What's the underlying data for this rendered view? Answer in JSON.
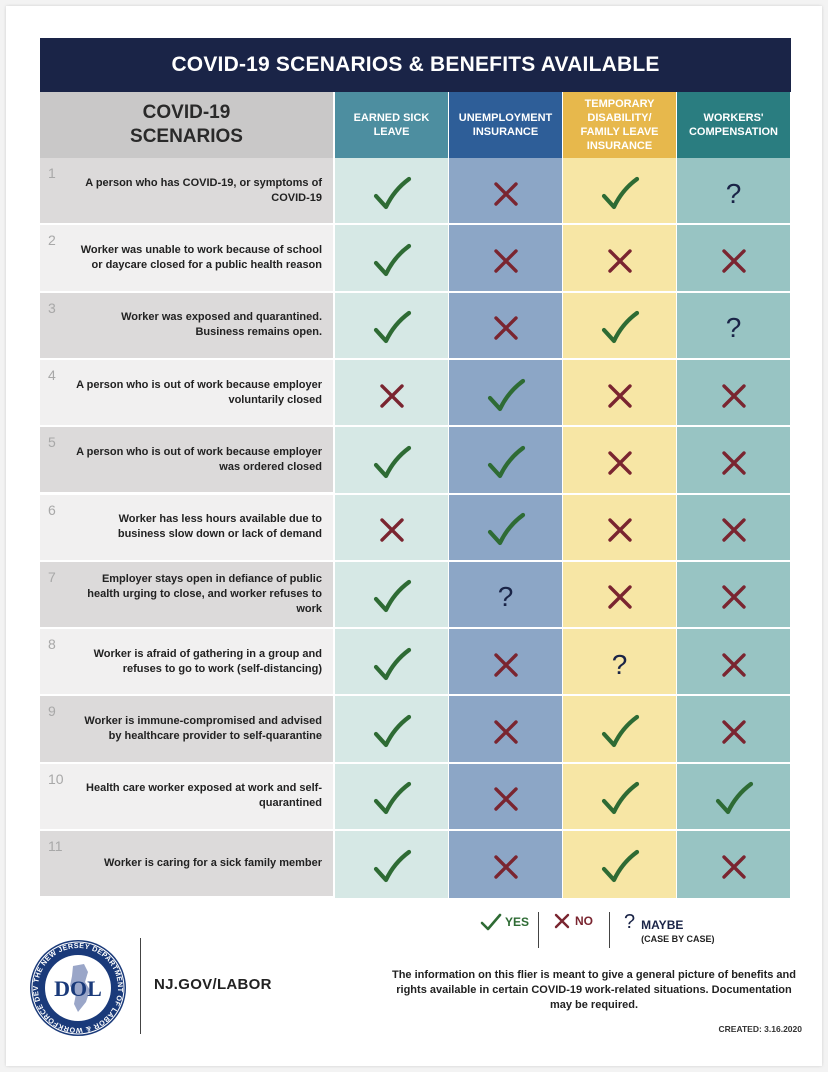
{
  "title": "COVID-19 SCENARIOS & BENEFITS AVAILABLE",
  "scenarios_header": [
    "COVID-19",
    "SCENARIOS"
  ],
  "columns": [
    {
      "label": "EARNED SICK LEAVE",
      "header_color": "#4d8ea0",
      "body_color": "#d6e8e5"
    },
    {
      "label": "UNEMPLOYMENT INSURANCE",
      "header_color": "#2e5e98",
      "body_color": "#8ca6c6"
    },
    {
      "label": "TEMPORARY DISABILITY/ FAMILY LEAVE INSURANCE",
      "header_color": "#e7b84c",
      "body_color": "#f7e6a5"
    },
    {
      "label": "WORKERS' COMPENSATION",
      "header_color": "#2a7d80",
      "body_color": "#98c4c3"
    }
  ],
  "rows": [
    {
      "num": "1",
      "text": "A person who has COVID-19, or symptoms of COVID-19",
      "marks": [
        "yes",
        "no",
        "yes",
        "maybe"
      ]
    },
    {
      "num": "2",
      "text": "Worker was unable to work because of school or daycare closed for a public health reason",
      "marks": [
        "yes",
        "no",
        "no",
        "no"
      ]
    },
    {
      "num": "3",
      "text": "Worker was exposed and quarantined. Business remains open.",
      "marks": [
        "yes",
        "no",
        "yes",
        "maybe"
      ]
    },
    {
      "num": "4",
      "text": "A person who is out of work because employer voluntarily closed",
      "marks": [
        "no",
        "yes",
        "no",
        "no"
      ]
    },
    {
      "num": "5",
      "text": "A person who is out of work because employer was ordered closed",
      "marks": [
        "yes",
        "yes",
        "no",
        "no"
      ]
    },
    {
      "num": "6",
      "text": "Worker has less hours available due to business slow down or lack of demand",
      "marks": [
        "no",
        "yes",
        "no",
        "no"
      ]
    },
    {
      "num": "7",
      "text": "Employer stays open in defiance of public health urging to close, and worker refuses to work",
      "marks": [
        "yes",
        "maybe",
        "no",
        "no"
      ]
    },
    {
      "num": "8",
      "text": "Worker is afraid of gathering in a group and refuses to go to work (self-distancing)",
      "marks": [
        "yes",
        "no",
        "maybe",
        "no"
      ]
    },
    {
      "num": "9",
      "text": "Worker is immune-compromised and advised by healthcare provider to self-quarantine",
      "marks": [
        "yes",
        "no",
        "yes",
        "no"
      ]
    },
    {
      "num": "10",
      "text": "Health care worker exposed at work and self-quarantined",
      "marks": [
        "yes",
        "no",
        "yes",
        "yes"
      ]
    },
    {
      "num": "11",
      "text": "Worker is caring for a sick family member",
      "marks": [
        "yes",
        "no",
        "yes",
        "no"
      ]
    }
  ],
  "legend": {
    "yes": "YES",
    "no": "NO",
    "maybe": "MAYBE",
    "maybe_sub": "(CASE BY CASE)"
  },
  "logo": {
    "text": "DOL",
    "ring_text": "THE NEW JERSEY DEPARTMENT OF LABOR & WORKFORCE DEVELOPMENT"
  },
  "website": "NJ.GOV/LABOR",
  "info": "The information on this flier is meant to give a general picture of benefits and rights available in certain COVID-19 work-related situations. Documentation may be required.",
  "created": "CREATED: 3.16.2020",
  "colors": {
    "yes": "#2e6b34",
    "no": "#7a2530",
    "maybe": "#1a2447",
    "navy": "#1a2447"
  }
}
